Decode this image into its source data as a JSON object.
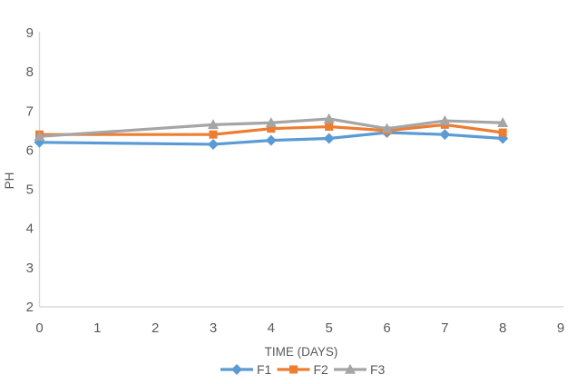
{
  "chart_data": {
    "type": "line",
    "title": "",
    "xlabel": "TIME (DAYS)",
    "ylabel": "PH",
    "x": [
      0,
      3,
      4,
      5,
      6,
      7,
      8
    ],
    "series": [
      {
        "name": "F1",
        "marker": "diamond",
        "color": "#5B9BD5",
        "values": [
          6.2,
          6.15,
          6.25,
          6.3,
          6.45,
          6.4,
          6.3
        ]
      },
      {
        "name": "F2",
        "marker": "square",
        "color": "#ED7D31",
        "values": [
          6.4,
          6.4,
          6.55,
          6.6,
          6.5,
          6.65,
          6.45
        ]
      },
      {
        "name": "F3",
        "marker": "triangle",
        "color": "#A5A5A5",
        "values": [
          6.35,
          6.65,
          6.7,
          6.8,
          6.55,
          6.75,
          6.7
        ]
      }
    ],
    "xlim": [
      0,
      9
    ],
    "ylim": [
      2,
      9
    ],
    "x_ticks": [
      0,
      1,
      2,
      3,
      4,
      5,
      6,
      7,
      8,
      9
    ],
    "y_ticks": [
      9,
      8,
      7,
      6,
      5,
      4,
      3,
      2
    ],
    "grid": false,
    "legend_position": "bottom",
    "axis_line_color": "#D9D9D9",
    "text_color": "#595959",
    "background_color": "#FFFFFF"
  }
}
